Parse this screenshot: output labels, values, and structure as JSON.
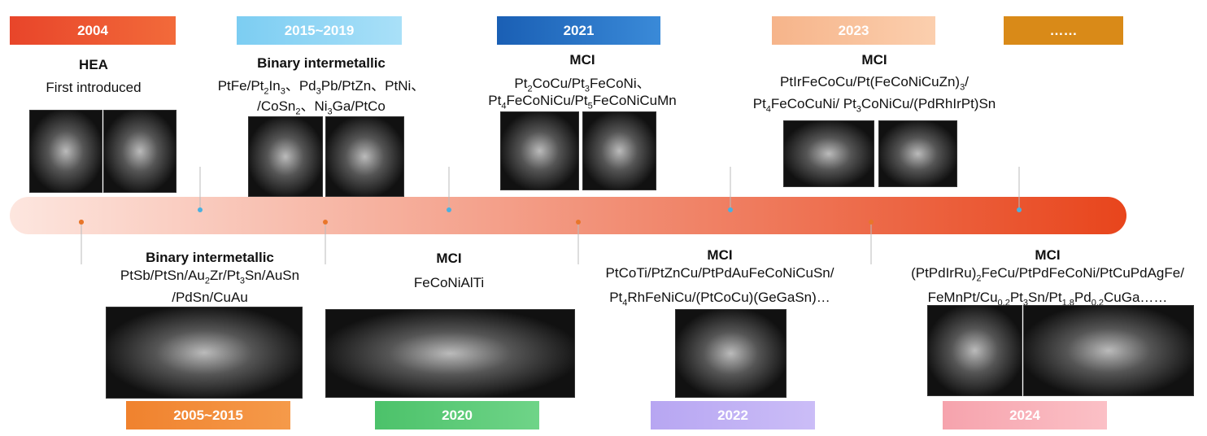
{
  "milestones": [
    {
      "year": "2004",
      "heading": "HEA",
      "lines": [
        [
          "First introduced"
        ]
      ]
    },
    {
      "year": "2015~2019",
      "heading": "Binary intermetallic",
      "lines": [
        [
          "PtFe/Pt",
          "2",
          "In",
          "3",
          "、Pd",
          "3",
          "Pb/PtZn、PtNi、"
        ],
        [
          "/CoSn",
          "2",
          "、Ni",
          "3",
          "Ga/PtCo"
        ]
      ]
    },
    {
      "year": "2021",
      "heading": "MCI",
      "lines": [
        [
          "Pt",
          "2",
          "CoCu/Pt",
          "3",
          "FeCoNi、"
        ],
        [
          "Pt",
          "4",
          "FeCoNiCu/Pt",
          "5",
          "FeCoNiCuMn"
        ]
      ]
    },
    {
      "year": "2023",
      "heading": "MCI",
      "lines": [
        [
          "PtIrFeCoCu/Pt(FeCoNiCuZn)",
          "3",
          "/"
        ],
        [
          "Pt",
          "4",
          "FeCoCuNi/ Pt",
          "3",
          "CoNiCu/(PdRhIrPt)Sn"
        ]
      ]
    },
    {
      "year": "……"
    },
    {
      "year": "2005~2015",
      "heading": "Binary intermetallic",
      "lines": [
        [
          "PtSb/PtSn/Au",
          "2",
          "Zr/Pt",
          "3",
          "Sn/AuSn"
        ],
        [
          "/PdSn/CuAu"
        ]
      ]
    },
    {
      "year": "2020",
      "heading": "MCI",
      "lines": [
        [
          "FeCoNiAlTi"
        ]
      ]
    },
    {
      "year": "2022",
      "heading": "MCI",
      "lines": [
        [
          "PtCoTi/PtZnCu/PtPdAuFeCoNiCuSn/"
        ],
        [
          "Pt",
          "4",
          "RhFeNiCu/(PtCoCu)(GeGaSn)…"
        ]
      ]
    },
    {
      "year": "2024",
      "heading": "MCI",
      "lines": [
        [
          "(PtPdIrRu)",
          "2",
          "FeCu/PtPdFeCoNi/PtCuPdAgFe/"
        ],
        [
          "FeMnPt/Cu",
          "0.2",
          "Pt",
          "3",
          "Sn/Pt",
          "1.8",
          "Pd",
          "0.2",
          "CuGa……"
        ]
      ]
    }
  ]
}
